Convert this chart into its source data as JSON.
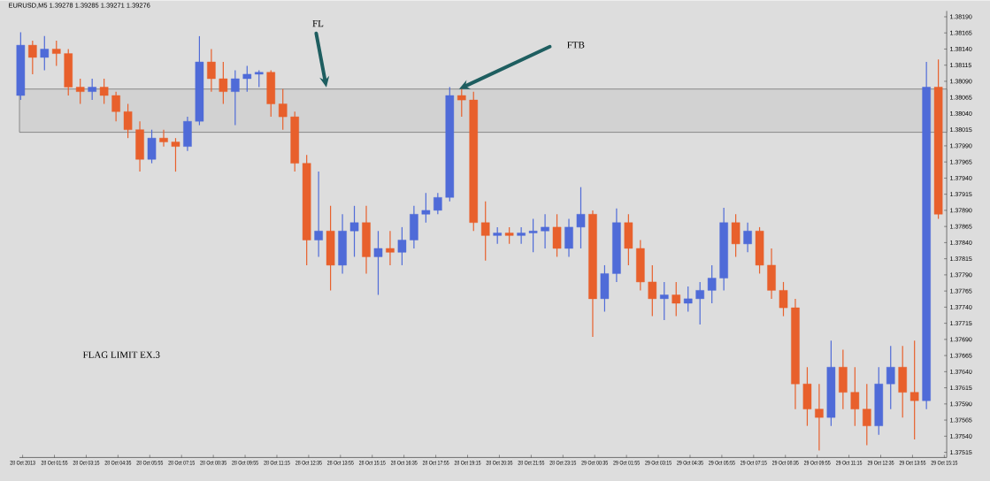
{
  "chart_data": {
    "type": "candlestick",
    "title": "EURUSD,M5 1.39278 1.39285 1.39271 1.39276",
    "annotations": [
      "FL",
      "FTB",
      "FLAG LIMIT EX.3"
    ],
    "bands": [
      {
        "axis": "y",
        "from": 1.38011,
        "to": 1.38078,
        "color": "#555555"
      }
    ],
    "x": [
      "2013-10-28T00:30",
      "2013-10-28T01:00",
      "2013-10-28T01:30",
      "2013-10-28T02:00",
      "2013-10-28T02:30",
      "2013-10-28T03:00",
      "2013-10-28T03:30",
      "2013-10-28T04:00",
      "2013-10-28T04:30",
      "2013-10-28T05:00",
      "2013-10-28T05:30",
      "2013-10-28T06:00",
      "2013-10-28T06:30",
      "2013-10-28T07:00",
      "2013-10-28T07:30",
      "2013-10-28T08:00",
      "2013-10-28T08:30",
      "2013-10-28T09:00",
      "2013-10-28T09:30",
      "2013-10-28T10:00",
      "2013-10-28T10:30",
      "2013-10-28T11:00",
      "2013-10-28T11:30",
      "2013-10-28T12:00",
      "2013-10-28T12:30",
      "2013-10-28T13:00",
      "2013-10-28T13:30",
      "2013-10-28T14:00",
      "2013-10-28T14:30",
      "2013-10-28T15:00",
      "2013-10-28T15:30",
      "2013-10-28T16:00",
      "2013-10-28T16:30",
      "2013-10-28T17:00",
      "2013-10-28T17:30",
      "2013-10-28T18:00",
      "2013-10-28T18:30",
      "2013-10-28T19:00",
      "2013-10-28T19:30",
      "2013-10-28T20:00",
      "2013-10-28T20:30",
      "2013-10-28T21:00",
      "2013-10-28T21:30",
      "2013-10-28T22:00",
      "2013-10-28T22:30",
      "2013-10-28T23:00",
      "2013-10-28T23:30",
      "2013-10-29T00:00",
      "2013-10-29T00:30",
      "2013-10-29T01:00",
      "2013-10-29T01:30",
      "2013-10-29T02:00",
      "2013-10-29T02:30",
      "2013-10-29T03:00",
      "2013-10-29T03:30",
      "2013-10-29T04:00",
      "2013-10-29T04:30",
      "2013-10-29T05:00",
      "2013-10-29T05:30",
      "2013-10-29T06:00",
      "2013-10-29T06:30",
      "2013-10-29T07:00",
      "2013-10-29T07:30",
      "2013-10-29T08:00",
      "2013-10-29T08:30",
      "2013-10-29T09:00",
      "2013-10-29T09:30",
      "2013-10-29T10:00",
      "2013-10-29T10:30",
      "2013-10-29T11:00",
      "2013-10-29T11:30",
      "2013-10-29T12:00",
      "2013-10-29T12:30",
      "2013-10-29T13:00",
      "2013-10-29T13:30",
      "2013-10-29T14:00",
      "2013-10-29T14:30",
      "2013-10-29T15:00"
    ],
    "ohlc": [
      [
        1.38068,
        1.38166,
        1.38061,
        1.38146
      ],
      [
        1.38146,
        1.38153,
        1.38101,
        1.38127
      ],
      [
        1.38127,
        1.3816,
        1.38107,
        1.3814
      ],
      [
        1.3814,
        1.38153,
        1.38114,
        1.38133
      ],
      [
        1.38133,
        1.3814,
        1.38068,
        1.38081
      ],
      [
        1.38081,
        1.38094,
        1.38055,
        1.38074
      ],
      [
        1.38074,
        1.38094,
        1.38061,
        1.38081
      ],
      [
        1.38081,
        1.38094,
        1.38055,
        1.38068
      ],
      [
        1.38068,
        1.38074,
        1.38028,
        1.38043
      ],
      [
        1.38043,
        1.38055,
        1.38002,
        1.38015
      ],
      [
        1.38015,
        1.38028,
        1.3795,
        1.37969
      ],
      [
        1.37969,
        1.38015,
        1.37963,
        1.38002
      ],
      [
        1.38002,
        1.38015,
        1.37989,
        1.37996
      ],
      [
        1.37996,
        1.38002,
        1.3795,
        1.37989
      ],
      [
        1.37989,
        1.38035,
        1.37982,
        1.38028
      ],
      [
        1.38028,
        1.3816,
        1.38022,
        1.3812
      ],
      [
        1.3812,
        1.3814,
        1.38074,
        1.38094
      ],
      [
        1.38094,
        1.3812,
        1.38055,
        1.38074
      ],
      [
        1.38074,
        1.38107,
        1.38022,
        1.38094
      ],
      [
        1.38094,
        1.38114,
        1.38074,
        1.38101
      ],
      [
        1.38101,
        1.38107,
        1.38081,
        1.38104
      ],
      [
        1.38104,
        1.38107,
        1.38035,
        1.38055
      ],
      [
        1.38055,
        1.38078,
        1.38015,
        1.38035
      ],
      [
        1.38035,
        1.38043,
        1.3795,
        1.37963
      ],
      [
        1.37963,
        1.37976,
        1.37805,
        1.37844
      ],
      [
        1.37844,
        1.3795,
        1.37818,
        1.37858
      ],
      [
        1.37858,
        1.37897,
        1.37766,
        1.37805
      ],
      [
        1.37805,
        1.37884,
        1.37792,
        1.37858
      ],
      [
        1.37858,
        1.37897,
        1.37818,
        1.37871
      ],
      [
        1.37871,
        1.37897,
        1.37792,
        1.37818
      ],
      [
        1.37818,
        1.37858,
        1.37759,
        1.37831
      ],
      [
        1.37831,
        1.37858,
        1.37805,
        1.37825
      ],
      [
        1.37825,
        1.37864,
        1.37805,
        1.37844
      ],
      [
        1.37844,
        1.37897,
        1.37831,
        1.37884
      ],
      [
        1.37884,
        1.37917,
        1.37871,
        1.3789
      ],
      [
        1.3789,
        1.37917,
        1.37884,
        1.3791
      ],
      [
        1.3791,
        1.38081,
        1.37904,
        1.38068
      ],
      [
        1.38068,
        1.38081,
        1.38035,
        1.38061
      ],
      [
        1.38061,
        1.38074,
        1.37858,
        1.37871
      ],
      [
        1.37871,
        1.37904,
        1.37812,
        1.37851
      ],
      [
        1.37851,
        1.37864,
        1.37838,
        1.37855
      ],
      [
        1.37855,
        1.37864,
        1.37838,
        1.37851
      ],
      [
        1.37851,
        1.37864,
        1.37838,
        1.37855
      ],
      [
        1.37855,
        1.37877,
        1.37825,
        1.37858
      ],
      [
        1.37858,
        1.37884,
        1.37831,
        1.37864
      ],
      [
        1.37864,
        1.37884,
        1.37818,
        1.37831
      ],
      [
        1.37831,
        1.37877,
        1.37818,
        1.37864
      ],
      [
        1.37864,
        1.37926,
        1.37831,
        1.37884
      ],
      [
        1.37884,
        1.3789,
        1.37694,
        1.37753
      ],
      [
        1.37753,
        1.37805,
        1.37733,
        1.37792
      ],
      [
        1.37792,
        1.37893,
        1.37779,
        1.37871
      ],
      [
        1.37871,
        1.37884,
        1.37805,
        1.37831
      ],
      [
        1.37831,
        1.37844,
        1.37766,
        1.37779
      ],
      [
        1.37779,
        1.37805,
        1.37726,
        1.37753
      ],
      [
        1.37753,
        1.37779,
        1.3772,
        1.37759
      ],
      [
        1.37759,
        1.37779,
        1.37726,
        1.37746
      ],
      [
        1.37746,
        1.37772,
        1.37733,
        1.37753
      ],
      [
        1.37753,
        1.37779,
        1.37713,
        1.37766
      ],
      [
        1.37766,
        1.37805,
        1.37746,
        1.37785
      ],
      [
        1.37785,
        1.37894,
        1.37766,
        1.37871
      ],
      [
        1.37871,
        1.37884,
        1.37818,
        1.37838
      ],
      [
        1.37838,
        1.37871,
        1.37825,
        1.37858
      ],
      [
        1.37858,
        1.37864,
        1.37792,
        1.37805
      ],
      [
        1.37805,
        1.37831,
        1.37753,
        1.37766
      ],
      [
        1.37766,
        1.37779,
        1.37726,
        1.37739
      ],
      [
        1.37739,
        1.37753,
        1.37582,
        1.37621
      ],
      [
        1.37621,
        1.37647,
        1.37556,
        1.37582
      ],
      [
        1.37582,
        1.37621,
        1.37518,
        1.37569
      ],
      [
        1.37569,
        1.37688,
        1.37556,
        1.37647
      ],
      [
        1.37647,
        1.37674,
        1.37582,
        1.37608
      ],
      [
        1.37608,
        1.37647,
        1.37556,
        1.37582
      ],
      [
        1.37582,
        1.37621,
        1.37526,
        1.37556
      ],
      [
        1.37556,
        1.37647,
        1.37542,
        1.37621
      ],
      [
        1.37621,
        1.3768,
        1.37582,
        1.37647
      ],
      [
        1.37647,
        1.3768,
        1.37569,
        1.37608
      ],
      [
        1.37608,
        1.37688,
        1.37535,
        1.37595
      ],
      [
        1.37595,
        1.3812,
        1.37582,
        1.38081
      ],
      [
        1.38081,
        1.38124,
        1.37877,
        1.37884
      ]
    ],
    "colors": [
      "#4f6bd8",
      "#e8602c",
      "#4f6bd8",
      "#e8602c",
      "#e8602c",
      "#e8602c",
      "#4f6bd8",
      "#e8602c",
      "#e8602c",
      "#e8602c",
      "#e8602c",
      "#4f6bd8",
      "#e8602c",
      "#e8602c",
      "#4f6bd8",
      "#4f6bd8",
      "#e8602c",
      "#e8602c",
      "#4f6bd8",
      "#4f6bd8",
      "#4f6bd8",
      "#e8602c",
      "#e8602c",
      "#e8602c",
      "#e8602c",
      "#4f6bd8",
      "#e8602c",
      "#4f6bd8",
      "#4f6bd8",
      "#e8602c",
      "#4f6bd8",
      "#e8602c",
      "#4f6bd8",
      "#4f6bd8",
      "#4f6bd8",
      "#4f6bd8",
      "#4f6bd8",
      "#e8602c",
      "#e8602c",
      "#e8602c",
      "#4f6bd8",
      "#e8602c",
      "#4f6bd8",
      "#4f6bd8",
      "#4f6bd8",
      "#e8602c",
      "#4f6bd8",
      "#4f6bd8",
      "#e8602c",
      "#4f6bd8",
      "#4f6bd8",
      "#e8602c",
      "#e8602c",
      "#e8602c",
      "#4f6bd8",
      "#e8602c",
      "#4f6bd8",
      "#4f6bd8",
      "#4f6bd8",
      "#4f6bd8",
      "#e8602c",
      "#4f6bd8",
      "#e8602c",
      "#e8602c",
      "#e8602c",
      "#e8602c",
      "#e8602c",
      "#e8602c",
      "#4f6bd8",
      "#e8602c",
      "#e8602c",
      "#e8602c",
      "#4f6bd8",
      "#4f6bd8",
      "#e8602c",
      "#e8602c",
      "#4f6bd8",
      "#e8602c"
    ],
    "xlim": [
      "2013-10-28T00:27",
      "2013-10-29T15:21"
    ],
    "xticks": [
      {
        "value": "2013-10-28T00:35",
        "label": "28 Oct 2013"
      },
      {
        "value": "2013-10-28T01:55",
        "label": "28 Oct 01:55"
      },
      {
        "value": "2013-10-28T03:15",
        "label": "28 Oct 03:15"
      },
      {
        "value": "2013-10-28T04:35",
        "label": "28 Oct 04:35"
      },
      {
        "value": "2013-10-28T05:55",
        "label": "28 Oct 05:55"
      },
      {
        "value": "2013-10-28T07:15",
        "label": "28 Oct 07:15"
      },
      {
        "value": "2013-10-28T08:35",
        "label": "28 Oct 08:35"
      },
      {
        "value": "2013-10-28T09:55",
        "label": "28 Oct 09:55"
      },
      {
        "value": "2013-10-28T11:15",
        "label": "28 Oct 11:15"
      },
      {
        "value": "2013-10-28T12:35",
        "label": "28 Oct 12:35"
      },
      {
        "value": "2013-10-28T13:55",
        "label": "28 Oct 13:55"
      },
      {
        "value": "2013-10-28T15:15",
        "label": "28 Oct 15:15"
      },
      {
        "value": "2013-10-28T16:35",
        "label": "28 Oct 16:35"
      },
      {
        "value": "2013-10-28T17:55",
        "label": "28 Oct 17:55"
      },
      {
        "value": "2013-10-28T19:15",
        "label": "28 Oct 19:15"
      },
      {
        "value": "2013-10-28T20:35",
        "label": "28 Oct 20:35"
      },
      {
        "value": "2013-10-28T21:55",
        "label": "28 Oct 21:55"
      },
      {
        "value": "2013-10-28T23:15",
        "label": "28 Oct 23:15"
      },
      {
        "value": "2013-10-29T00:35",
        "label": "29 Oct 00:35"
      },
      {
        "value": "2013-10-29T01:55",
        "label": "29 Oct 01:55"
      },
      {
        "value": "2013-10-29T03:15",
        "label": "29 Oct 03:15"
      },
      {
        "value": "2013-10-29T04:35",
        "label": "29 Oct 04:35"
      },
      {
        "value": "2013-10-29T05:55",
        "label": "29 Oct 05:55"
      },
      {
        "value": "2013-10-29T07:15",
        "label": "29 Oct 07:15"
      },
      {
        "value": "2013-10-29T08:35",
        "label": "29 Oct 08:35"
      },
      {
        "value": "2013-10-29T09:55",
        "label": "29 Oct 09:55"
      },
      {
        "value": "2013-10-29T11:15",
        "label": "29 Oct 11:15"
      },
      {
        "value": "2013-10-29T12:35",
        "label": "29 Oct 12:35"
      },
      {
        "value": "2013-10-29T13:55",
        "label": "29 Oct 13:55"
      },
      {
        "value": "2013-10-29T15:15",
        "label": "29 Oct 15:15"
      }
    ],
    "ylim": [
      1.37507,
      1.38199
    ],
    "yticks": [
      {
        "value": 1.3819,
        "label": "1.38190"
      },
      1.38165,
      {
        "value": 1.3814,
        "label": "1.38140"
      },
      1.38115,
      {
        "value": 1.3809,
        "label": "1.38090"
      },
      1.38065,
      {
        "value": 1.3804,
        "label": "1.38040"
      },
      1.38015,
      {
        "value": 1.3799,
        "label": "1.37990"
      },
      1.37965,
      {
        "value": 1.3794,
        "label": "1.37940"
      },
      1.37915,
      {
        "value": 1.3789,
        "label": "1.37890"
      },
      1.37865,
      {
        "value": 1.3784,
        "label": "1.37840"
      },
      1.37815,
      {
        "value": 1.3779,
        "label": "1.37790"
      },
      1.37765,
      {
        "value": 1.3774,
        "label": "1.37740"
      },
      1.37715,
      {
        "value": 1.3769,
        "label": "1.37690"
      },
      1.37665,
      {
        "value": 1.3764,
        "label": "1.37640"
      },
      1.37615,
      {
        "value": 1.3759,
        "label": "1.37590"
      },
      1.37565,
      {
        "value": 1.3754,
        "label": "1.37540"
      },
      1.37515
    ]
  }
}
